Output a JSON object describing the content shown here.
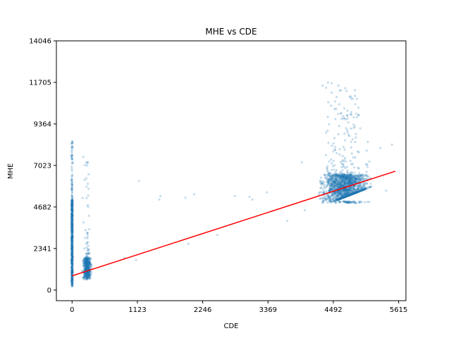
{
  "chart_data": {
    "type": "scatter",
    "title": "MHE vs CDE",
    "xlabel": "CDE",
    "ylabel": "MHE",
    "xlim": [
      -270,
      5740
    ],
    "ylim": [
      -600,
      14046
    ],
    "xticks": [
      0,
      1123,
      2246,
      3369,
      4492,
      5615
    ],
    "yticks": [
      0,
      2341,
      4682,
      7023,
      9364,
      11705,
      14046
    ],
    "grid": false,
    "colors": {
      "points": "#1f77b4",
      "fit_line": "#ff0000"
    },
    "fit_line": {
      "x": [
        0,
        5560
      ],
      "y": [
        800,
        6700
      ]
    },
    "clusters": [
      {
        "name": "",
        "x_center": 0,
        "x_spread": 5,
        "y_min": 200,
        "y_max": 8600,
        "y_core": [
          500,
          5000
        ],
        "count": 700
      },
      {
        "name": "",
        "x_center": 260,
        "x_spread": 30,
        "y_min": 600,
        "y_max": 7700,
        "y_core": [
          700,
          1800
        ],
        "count": 500
      },
      {
        "name": "",
        "x_center": 4700,
        "x_spread": 180,
        "y_min": 4900,
        "y_max": 11700,
        "y_core": [
          5000,
          6500
        ],
        "count": 1600
      }
    ],
    "outliers": [
      {
        "x": 1150,
        "y": 6150
      },
      {
        "x": 1500,
        "y": 5100
      },
      {
        "x": 1520,
        "y": 5300
      },
      {
        "x": 1950,
        "y": 5200
      },
      {
        "x": 2100,
        "y": 5400
      },
      {
        "x": 2800,
        "y": 5300
      },
      {
        "x": 3050,
        "y": 5250
      },
      {
        "x": 3100,
        "y": 5100
      },
      {
        "x": 3350,
        "y": 5500
      },
      {
        "x": 3700,
        "y": 3900
      },
      {
        "x": 3950,
        "y": 7200
      },
      {
        "x": 4000,
        "y": 4500
      },
      {
        "x": 4400,
        "y": 11700
      },
      {
        "x": 5500,
        "y": 8200
      },
      {
        "x": 5300,
        "y": 8000
      },
      {
        "x": 5400,
        "y": 5600
      },
      {
        "x": 2500,
        "y": 3100
      },
      {
        "x": 2000,
        "y": 2600
      },
      {
        "x": 900,
        "y": 1800
      },
      {
        "x": 1100,
        "y": 1700
      }
    ]
  }
}
